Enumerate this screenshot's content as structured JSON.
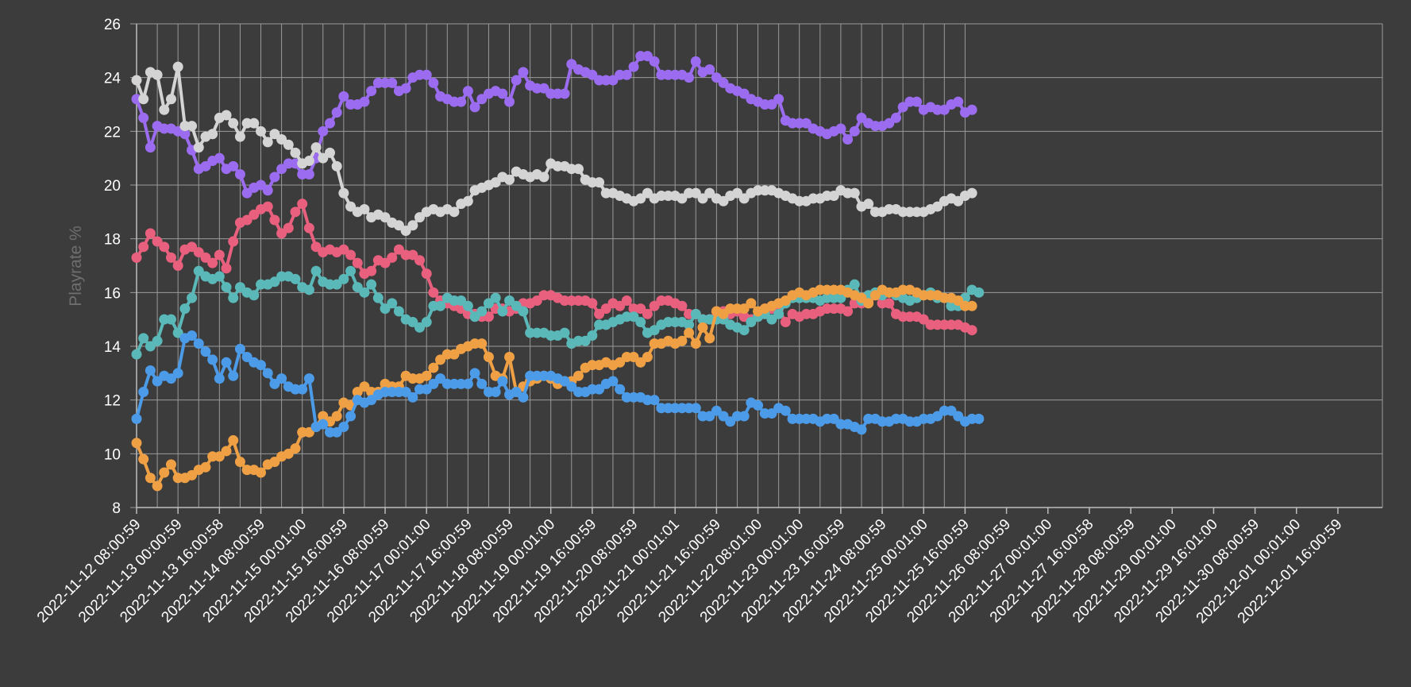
{
  "chart_data": {
    "type": "line",
    "title": "",
    "xlabel": "",
    "ylabel": "Playrate %",
    "ylim": [
      8,
      26
    ],
    "y_ticks": [
      8,
      10,
      12,
      14,
      16,
      18,
      20,
      22,
      24,
      26
    ],
    "grid": true,
    "legend": "none",
    "background": "#3c3c3c",
    "x_tick_labels": [
      "2022-11-12 08:00:59",
      "2022-11-13 00:00:59",
      "2022-11-13 16:00:58",
      "2022-11-14 08:00:59",
      "2022-11-15 00:01:00",
      "2022-11-15 16:00:59",
      "2022-11-16 08:00:59",
      "2022-11-17 00:01:00",
      "2022-11-17 16:00:59",
      "2022-11-18 08:00:59",
      "2022-11-19 00:01:00",
      "2022-11-19 16:00:59",
      "2022-11-20 08:00:59",
      "2022-11-21 00:01:01",
      "2022-11-21 16:00:59",
      "2022-11-22 08:01:00",
      "2022-11-23 00:01:00",
      "2022-11-23 16:00:59",
      "2022-11-24 08:00:59",
      "2022-11-25 00:01:00",
      "2022-11-25 16:00:59",
      "2022-11-26 08:00:59",
      "2022-11-27 00:01:00",
      "2022-11-27 16:00:58",
      "2022-11-28 08:00:59",
      "2022-11-29 00:01:00",
      "2022-11-29 16:01:00",
      "2022-11-30 08:00:59",
      "2022-12-01 00:01:00",
      "2022-12-01 16:00:59"
    ],
    "series": [
      {
        "color": "#9b6cf0",
        "values": [
          23.2,
          22.5,
          21.4,
          22.2,
          22.1,
          22.1,
          22.0,
          21.9,
          21.3,
          20.6,
          20.7,
          20.9,
          21.0,
          20.6,
          20.7,
          20.4,
          19.7,
          19.9,
          20.0,
          19.8,
          20.3,
          20.6,
          20.8,
          20.8,
          20.4,
          20.4,
          21.0,
          22.0,
          22.3,
          22.7,
          23.3,
          23.0,
          23.0,
          23.1,
          23.5,
          23.8,
          23.8,
          23.8,
          23.5,
          23.6,
          24.0,
          24.1,
          24.1,
          23.8,
          23.3,
          23.2,
          23.1,
          23.1,
          23.5,
          22.9,
          23.2,
          23.4,
          23.5,
          23.4,
          23.1,
          23.9,
          24.2,
          23.7,
          23.6,
          23.6,
          23.4,
          23.4,
          23.4,
          24.5,
          24.3,
          24.2,
          24.1,
          23.9,
          23.9,
          23.9,
          24.1,
          24.1,
          24.4,
          24.8,
          24.8,
          24.6,
          24.1,
          24.1,
          24.1,
          24.1,
          24.0,
          24.6,
          24.2,
          24.3,
          24.0,
          23.8,
          23.6,
          23.5,
          23.4,
          23.2,
          23.1,
          23.0,
          23.0,
          23.2,
          22.4,
          22.3,
          22.3,
          22.3,
          22.1,
          22.0,
          21.9,
          22.0,
          22.1,
          21.7,
          22.0,
          22.5,
          22.3,
          22.2,
          22.2,
          22.3,
          22.5,
          22.9,
          23.1,
          23.1,
          22.8,
          22.9,
          22.8,
          22.8,
          23.0,
          23.1,
          22.7,
          22.8
        ]
      },
      {
        "color": "#d4d4d4",
        "values": [
          23.9,
          23.2,
          24.2,
          24.1,
          22.8,
          23.2,
          24.4,
          22.2,
          22.2,
          21.4,
          21.8,
          21.9,
          22.5,
          22.6,
          22.3,
          21.8,
          22.3,
          22.3,
          22.0,
          21.6,
          21.9,
          21.7,
          21.5,
          21.2,
          20.8,
          20.9,
          21.4,
          21.0,
          21.2,
          20.7,
          19.7,
          19.2,
          19.0,
          19.1,
          18.8,
          18.9,
          18.8,
          18.6,
          18.5,
          18.3,
          18.5,
          18.8,
          19.0,
          19.1,
          19.0,
          19.1,
          19.0,
          19.3,
          19.4,
          19.8,
          19.9,
          20.0,
          20.1,
          20.3,
          20.2,
          20.5,
          20.4,
          20.3,
          20.4,
          20.3,
          20.8,
          20.7,
          20.7,
          20.6,
          20.6,
          20.2,
          20.1,
          20.1,
          19.7,
          19.7,
          19.6,
          19.5,
          19.4,
          19.5,
          19.7,
          19.5,
          19.6,
          19.6,
          19.6,
          19.5,
          19.7,
          19.7,
          19.5,
          19.7,
          19.5,
          19.4,
          19.6,
          19.7,
          19.5,
          19.7,
          19.8,
          19.8,
          19.8,
          19.7,
          19.6,
          19.5,
          19.4,
          19.4,
          19.5,
          19.5,
          19.6,
          19.6,
          19.8,
          19.7,
          19.7,
          19.2,
          19.3,
          19.0,
          19.0,
          19.1,
          19.1,
          19.0,
          19.0,
          19.0,
          19.0,
          19.1,
          19.2,
          19.4,
          19.5,
          19.4,
          19.6,
          19.7
        ]
      },
      {
        "color": "#e8607e",
        "values": [
          17.3,
          17.7,
          18.2,
          17.9,
          17.7,
          17.3,
          17.0,
          17.6,
          17.7,
          17.5,
          17.3,
          17.1,
          17.4,
          16.9,
          17.9,
          18.6,
          18.7,
          18.9,
          19.1,
          19.2,
          18.7,
          18.2,
          18.4,
          19.0,
          19.3,
          18.4,
          17.7,
          17.5,
          17.6,
          17.5,
          17.6,
          17.4,
          17.1,
          16.7,
          16.8,
          17.2,
          17.1,
          17.3,
          17.6,
          17.4,
          17.4,
          17.2,
          16.7,
          16.0,
          15.7,
          15.6,
          15.5,
          15.4,
          15.2,
          15.2,
          15.1,
          15.1,
          15.4,
          15.4,
          15.3,
          15.4,
          15.6,
          15.6,
          15.7,
          15.9,
          15.9,
          15.8,
          15.7,
          15.7,
          15.7,
          15.7,
          15.6,
          15.2,
          15.4,
          15.6,
          15.5,
          15.7,
          15.4,
          15.4,
          15.2,
          15.5,
          15.7,
          15.7,
          15.6,
          15.5,
          15.2,
          15.2,
          15.0,
          15.0,
          15.3,
          15.3,
          15.2,
          15.3,
          15.1,
          15.0,
          15.1,
          15.4,
          15.4,
          15.4,
          14.9,
          15.2,
          15.1,
          15.2,
          15.2,
          15.3,
          15.4,
          15.4,
          15.4,
          15.3,
          15.6,
          15.6,
          15.7,
          15.9,
          15.6,
          15.6,
          15.2,
          15.1,
          15.1,
          15.1,
          15.0,
          14.8,
          14.8,
          14.8,
          14.8,
          14.8,
          14.7,
          14.6
        ]
      },
      {
        "color": "#5ab8b8",
        "values": [
          13.7,
          14.3,
          14.0,
          14.2,
          15.0,
          15.0,
          14.5,
          15.4,
          15.8,
          16.8,
          16.6,
          16.5,
          16.6,
          16.2,
          15.8,
          16.2,
          16.0,
          15.9,
          16.3,
          16.3,
          16.4,
          16.6,
          16.6,
          16.5,
          16.2,
          16.1,
          16.8,
          16.4,
          16.3,
          16.3,
          16.5,
          16.8,
          16.2,
          16.0,
          16.3,
          15.8,
          15.4,
          15.6,
          15.3,
          15.0,
          14.9,
          14.7,
          14.9,
          15.5,
          15.5,
          15.8,
          15.7,
          15.7,
          15.5,
          15.1,
          15.3,
          15.6,
          15.8,
          15.3,
          15.7,
          15.5,
          15.3,
          14.5,
          14.5,
          14.5,
          14.4,
          14.4,
          14.5,
          14.1,
          14.2,
          14.2,
          14.4,
          14.8,
          14.8,
          14.9,
          15.0,
          15.1,
          15.1,
          14.9,
          14.5,
          14.6,
          14.8,
          14.9,
          14.9,
          14.9,
          14.8,
          15.2,
          15.0,
          15.0,
          15.0,
          15.0,
          14.8,
          14.7,
          14.6,
          14.9,
          15.1,
          15.2,
          15.0,
          15.2,
          15.6,
          15.8,
          15.8,
          15.8,
          15.8,
          15.7,
          15.8,
          15.8,
          15.8,
          16.1,
          16.3,
          15.7,
          15.9,
          16.0,
          15.9,
          16.0,
          15.9,
          15.8,
          15.7,
          15.8,
          15.9,
          16.0,
          15.8,
          15.8,
          15.5,
          15.5,
          15.8,
          16.1,
          16.0
        ]
      },
      {
        "color": "#f0a044",
        "values": [
          10.4,
          9.8,
          9.1,
          8.8,
          9.3,
          9.6,
          9.1,
          9.1,
          9.2,
          9.4,
          9.5,
          9.9,
          9.9,
          10.1,
          10.5,
          9.7,
          9.4,
          9.4,
          9.3,
          9.6,
          9.7,
          9.9,
          10.0,
          10.2,
          10.8,
          10.8,
          11.0,
          11.4,
          11.2,
          11.4,
          11.9,
          11.8,
          12.3,
          12.5,
          12.3,
          12.3,
          12.6,
          12.5,
          12.5,
          12.9,
          12.8,
          12.8,
          12.9,
          13.2,
          13.5,
          13.7,
          13.7,
          13.9,
          14.0,
          14.1,
          14.1,
          13.6,
          12.9,
          12.8,
          13.6,
          12.3,
          12.5,
          12.7,
          12.8,
          12.9,
          12.8,
          12.6,
          12.7,
          12.7,
          12.9,
          13.2,
          13.3,
          13.3,
          13.4,
          13.3,
          13.4,
          13.6,
          13.6,
          13.4,
          13.6,
          14.1,
          14.1,
          14.2,
          14.1,
          14.2,
          14.5,
          14.1,
          14.7,
          14.3,
          15.3,
          15.2,
          15.4,
          15.4,
          15.4,
          15.6,
          15.3,
          15.4,
          15.5,
          15.6,
          15.7,
          15.9,
          16.0,
          15.9,
          16.0,
          16.1,
          16.1,
          16.1,
          16.1,
          16.0,
          15.9,
          15.8,
          15.6,
          15.9,
          16.1,
          16.0,
          16.0,
          16.1,
          16.1,
          16.0,
          15.9,
          15.9,
          15.9,
          15.8,
          15.8,
          15.7,
          15.5,
          15.5
        ]
      },
      {
        "color": "#4c9be8",
        "values": [
          11.3,
          12.3,
          13.1,
          12.7,
          12.9,
          12.8,
          13.0,
          14.3,
          14.4,
          14.1,
          13.8,
          13.5,
          12.8,
          13.4,
          12.9,
          13.9,
          13.6,
          13.4,
          13.3,
          13.0,
          12.6,
          12.8,
          12.5,
          12.4,
          12.4,
          12.8,
          11.0,
          11.1,
          10.8,
          10.8,
          11.0,
          11.4,
          12.0,
          11.9,
          12.0,
          12.2,
          12.3,
          12.3,
          12.3,
          12.3,
          12.1,
          12.4,
          12.4,
          12.6,
          12.8,
          12.6,
          12.6,
          12.6,
          12.6,
          13.0,
          12.6,
          12.3,
          12.3,
          12.7,
          12.2,
          12.3,
          12.1,
          12.9,
          12.9,
          12.9,
          12.9,
          12.8,
          12.7,
          12.5,
          12.3,
          12.3,
          12.4,
          12.4,
          12.6,
          12.7,
          12.4,
          12.1,
          12.1,
          12.1,
          12.0,
          12.0,
          11.7,
          11.7,
          11.7,
          11.7,
          11.7,
          11.7,
          11.4,
          11.4,
          11.6,
          11.4,
          11.2,
          11.4,
          11.4,
          11.9,
          11.8,
          11.5,
          11.5,
          11.7,
          11.6,
          11.3,
          11.3,
          11.3,
          11.3,
          11.2,
          11.3,
          11.3,
          11.1,
          11.1,
          11.0,
          10.9,
          11.3,
          11.3,
          11.2,
          11.2,
          11.3,
          11.3,
          11.2,
          11.2,
          11.3,
          11.3,
          11.4,
          11.6,
          11.6,
          11.4,
          11.2,
          11.3,
          11.3
        ]
      }
    ]
  }
}
